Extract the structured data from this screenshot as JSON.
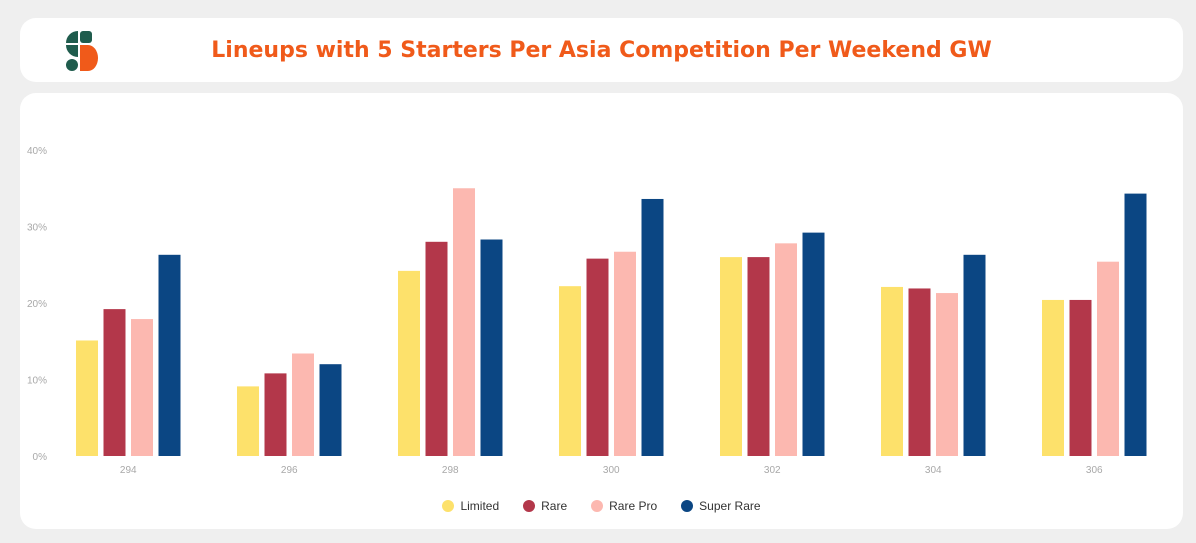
{
  "header": {
    "title": "Lineups with 5 Starters Per Asia Competition Per Weekend GW"
  },
  "colors": {
    "brand_orange": "#f05a1a",
    "brand_green": "#1f5c4d"
  },
  "chart_data": {
    "type": "bar",
    "title": "Lineups with 5 Starters Per Asia Competition Per Weekend GW",
    "xlabel": "",
    "ylabel": "",
    "categories": [
      "294",
      "296",
      "298",
      "300",
      "302",
      "304",
      "306"
    ],
    "ylim": [
      0,
      40
    ],
    "yticks": [
      "0%",
      "10%",
      "20%",
      "30%",
      "40%"
    ],
    "ytick_values": [
      0,
      10,
      20,
      30,
      40
    ],
    "grid": false,
    "legend_position": "bottom",
    "series": [
      {
        "name": "Limited",
        "color": "#fde16b",
        "values": [
          15.1,
          9.1,
          24.2,
          22.2,
          26.0,
          22.1,
          20.4
        ]
      },
      {
        "name": "Rare",
        "color": "#b3374a",
        "values": [
          19.2,
          10.8,
          28.0,
          25.8,
          26.0,
          21.9,
          20.4
        ]
      },
      {
        "name": "Rare Pro",
        "color": "#fcb8b0",
        "values": [
          17.9,
          13.4,
          35.0,
          26.7,
          27.8,
          21.3,
          25.4
        ]
      },
      {
        "name": "Super Rare",
        "color": "#0b4683",
        "values": [
          26.3,
          12.0,
          28.3,
          33.6,
          29.2,
          26.3,
          34.3
        ]
      }
    ]
  }
}
